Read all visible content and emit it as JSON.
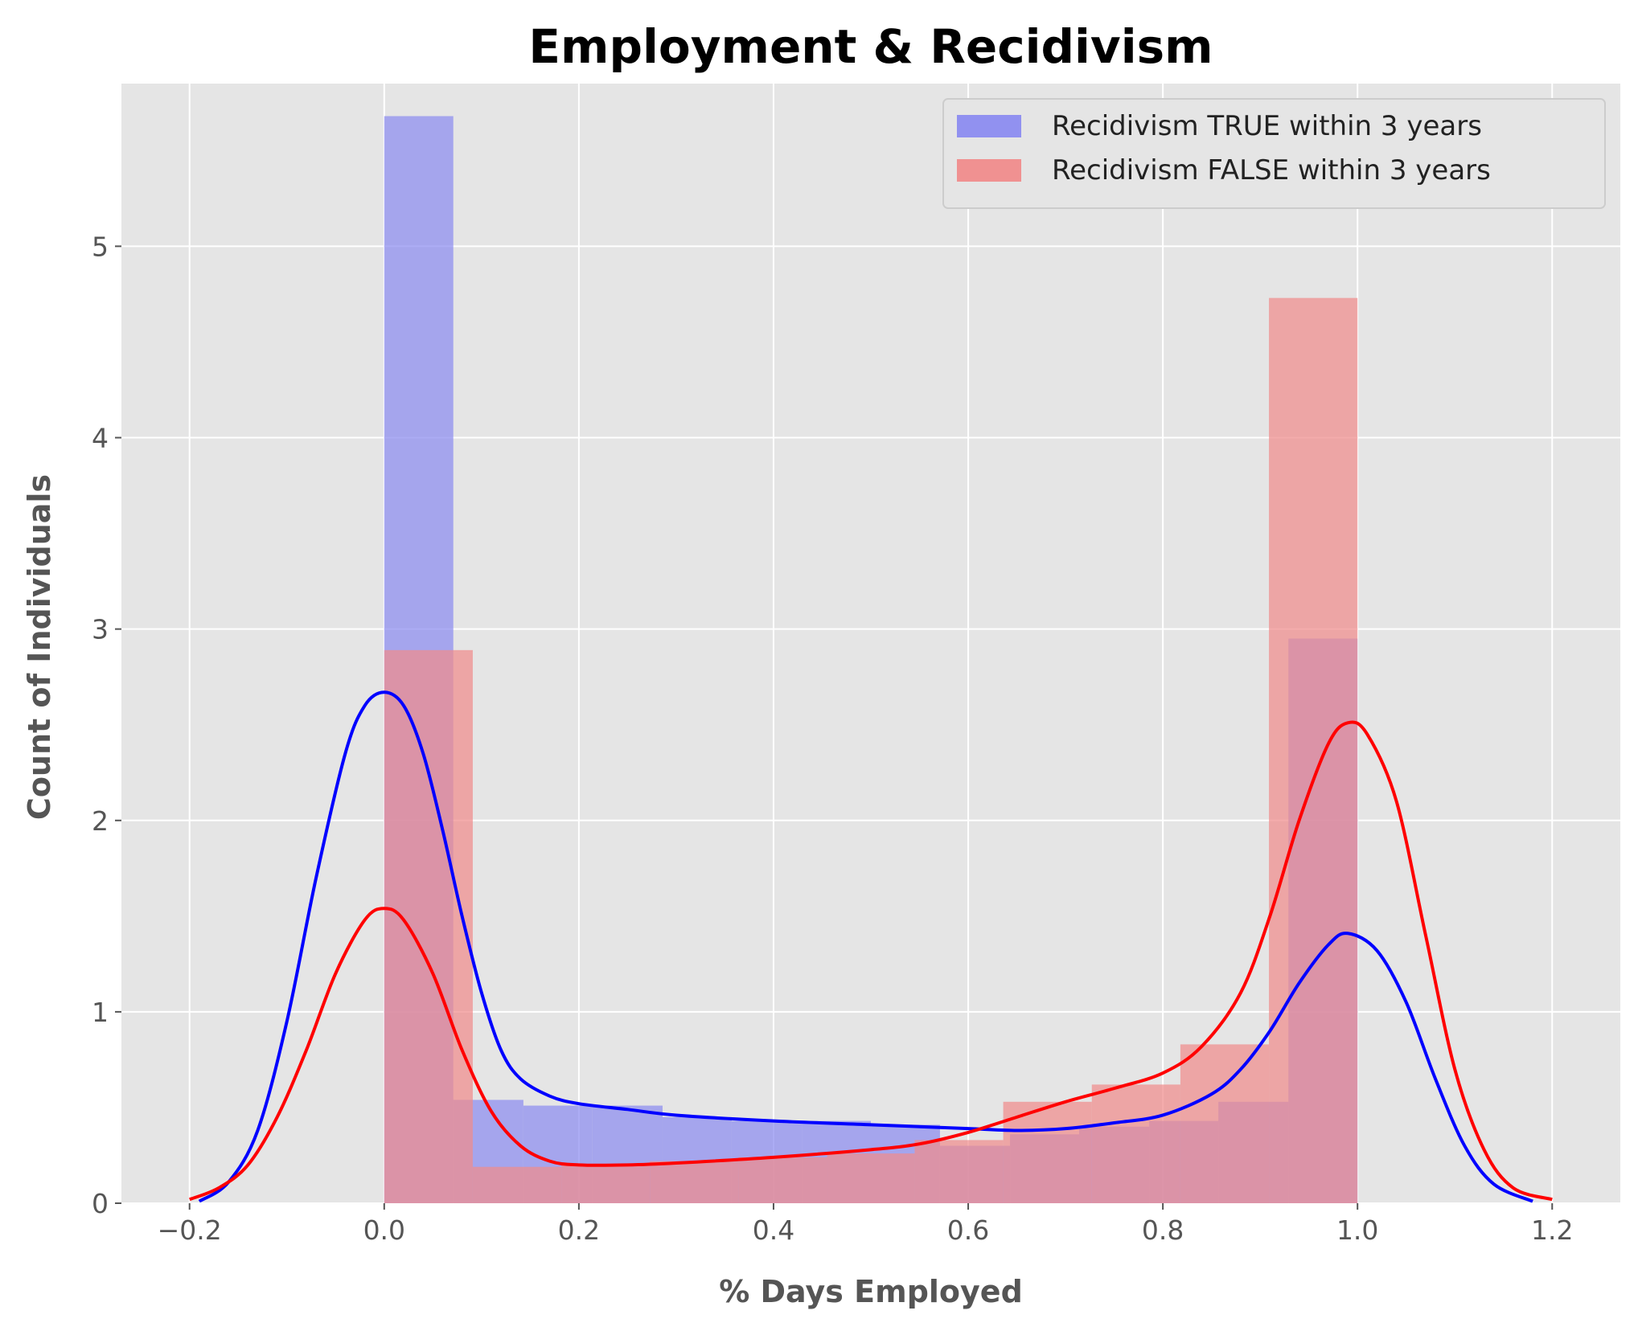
{
  "chart_data": {
    "type": "histogram",
    "title": "Employment & Recidivism",
    "xlabel": "% Days Employed",
    "ylabel": "Count of Individuals",
    "xlim": [
      -0.27,
      1.27
    ],
    "ylim": [
      0,
      5.85
    ],
    "xticks": [
      -0.2,
      0.0,
      0.2,
      0.4,
      0.6,
      0.8,
      1.0,
      1.2
    ],
    "xtick_labels": [
      "−0.2",
      "0.0",
      "0.2",
      "0.4",
      "0.6",
      "0.8",
      "1.0",
      "1.2"
    ],
    "yticks": [
      0,
      1,
      2,
      3,
      4,
      5
    ],
    "ytick_labels": [
      "0",
      "1",
      "2",
      "3",
      "4",
      "5"
    ],
    "grid": true,
    "legend_position": "top-right",
    "series": [
      {
        "name": "Recidivism TRUE within 3 years",
        "fill_color": "#8c8cf0",
        "line_color": "#0000ff",
        "bins": [
          {
            "x0": 0.0,
            "x1": 0.071,
            "value": 5.68
          },
          {
            "x0": 0.071,
            "x1": 0.143,
            "value": 0.54
          },
          {
            "x0": 0.143,
            "x1": 0.214,
            "value": 0.51
          },
          {
            "x0": 0.214,
            "x1": 0.286,
            "value": 0.51
          },
          {
            "x0": 0.286,
            "x1": 0.357,
            "value": 0.45
          },
          {
            "x0": 0.357,
            "x1": 0.429,
            "value": 0.43
          },
          {
            "x0": 0.429,
            "x1": 0.5,
            "value": 0.43
          },
          {
            "x0": 0.5,
            "x1": 0.571,
            "value": 0.41
          },
          {
            "x0": 0.571,
            "x1": 0.643,
            "value": 0.3
          },
          {
            "x0": 0.643,
            "x1": 0.714,
            "value": 0.36
          },
          {
            "x0": 0.714,
            "x1": 0.786,
            "value": 0.4
          },
          {
            "x0": 0.786,
            "x1": 0.857,
            "value": 0.43
          },
          {
            "x0": 0.857,
            "x1": 0.929,
            "value": 0.53
          },
          {
            "x0": 0.929,
            "x1": 1.0,
            "value": 2.95
          }
        ],
        "kde": {
          "x": [
            -0.19,
            -0.16,
            -0.13,
            -0.1,
            -0.07,
            -0.04,
            -0.02,
            0.0,
            0.02,
            0.04,
            0.06,
            0.08,
            0.1,
            0.12,
            0.14,
            0.17,
            0.2,
            0.25,
            0.3,
            0.4,
            0.5,
            0.6,
            0.65,
            0.7,
            0.75,
            0.8,
            0.85,
            0.88,
            0.91,
            0.94,
            0.97,
            0.99,
            1.02,
            1.05,
            1.08,
            1.11,
            1.14,
            1.18
          ],
          "y": [
            0.01,
            0.11,
            0.38,
            0.95,
            1.7,
            2.35,
            2.6,
            2.67,
            2.6,
            2.35,
            1.95,
            1.5,
            1.1,
            0.8,
            0.65,
            0.56,
            0.52,
            0.49,
            0.46,
            0.43,
            0.41,
            0.39,
            0.38,
            0.39,
            0.42,
            0.46,
            0.57,
            0.7,
            0.9,
            1.15,
            1.35,
            1.41,
            1.32,
            1.05,
            0.65,
            0.3,
            0.1,
            0.01
          ]
        }
      },
      {
        "name": "Recidivism FALSE within 3 years",
        "fill_color": "#f08c8c",
        "line_color": "#ff0000",
        "bins": [
          {
            "x0": 0.0,
            "x1": 0.091,
            "value": 2.89
          },
          {
            "x0": 0.091,
            "x1": 0.182,
            "value": 0.19
          },
          {
            "x0": 0.182,
            "x1": 0.273,
            "value": 0.2
          },
          {
            "x0": 0.273,
            "x1": 0.364,
            "value": 0.22
          },
          {
            "x0": 0.364,
            "x1": 0.455,
            "value": 0.24
          },
          {
            "x0": 0.455,
            "x1": 0.545,
            "value": 0.26
          },
          {
            "x0": 0.545,
            "x1": 0.636,
            "value": 0.33
          },
          {
            "x0": 0.636,
            "x1": 0.727,
            "value": 0.53
          },
          {
            "x0": 0.727,
            "x1": 0.818,
            "value": 0.62
          },
          {
            "x0": 0.818,
            "x1": 0.909,
            "value": 0.83
          },
          {
            "x0": 0.909,
            "x1": 1.0,
            "value": 4.73
          }
        ],
        "kde": {
          "x": [
            -0.2,
            -0.17,
            -0.14,
            -0.11,
            -0.08,
            -0.05,
            -0.02,
            0.0,
            0.02,
            0.05,
            0.08,
            0.11,
            0.14,
            0.17,
            0.2,
            0.25,
            0.3,
            0.4,
            0.5,
            0.55,
            0.6,
            0.65,
            0.7,
            0.75,
            0.8,
            0.84,
            0.88,
            0.91,
            0.94,
            0.97,
            0.99,
            1.01,
            1.04,
            1.07,
            1.1,
            1.13,
            1.16,
            1.2
          ],
          "y": [
            0.02,
            0.08,
            0.2,
            0.45,
            0.8,
            1.2,
            1.48,
            1.54,
            1.48,
            1.2,
            0.8,
            0.48,
            0.3,
            0.22,
            0.2,
            0.2,
            0.21,
            0.24,
            0.28,
            0.31,
            0.37,
            0.45,
            0.53,
            0.6,
            0.68,
            0.82,
            1.1,
            1.5,
            2.0,
            2.4,
            2.51,
            2.45,
            2.1,
            1.4,
            0.7,
            0.28,
            0.08,
            0.02
          ]
        }
      }
    ]
  }
}
